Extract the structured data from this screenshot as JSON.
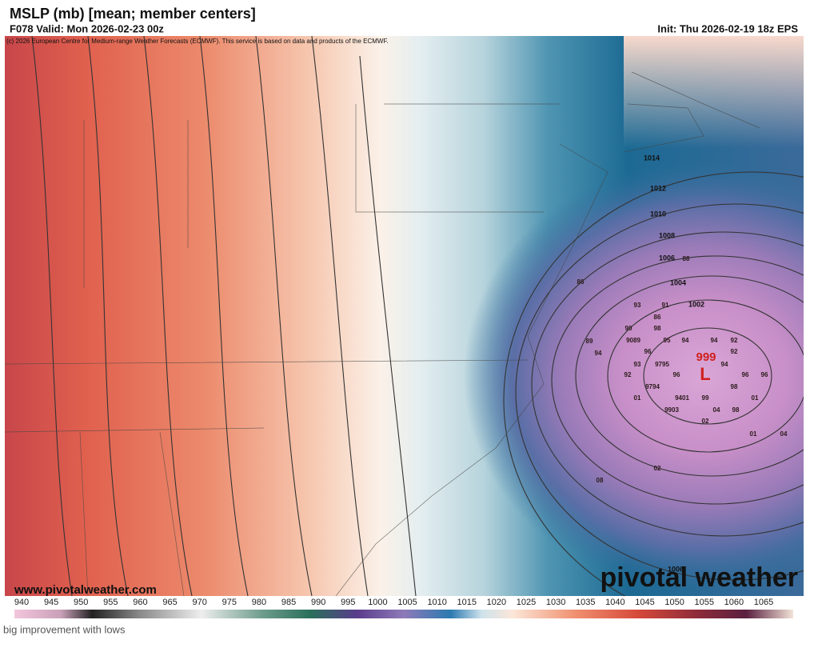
{
  "header": {
    "title": "MSLP (mb) [mean; member centers]",
    "valid": "F078 Valid: Mon 2026-02-23 00z",
    "init": "Init: Thu 2026-02-19 18z EPS",
    "credit": "(c) 2026 European Centre for Medium-range Weather Forecasts (ECMWF). This service is based on data and products of the ECMWF."
  },
  "isobar_labels": [
    "1014",
    "1012",
    "1010",
    "1008",
    "1006",
    "1004",
    "1002",
    "1006"
  ],
  "low": {
    "pressure": "999",
    "symbol": "L"
  },
  "member_centers": [
    "88",
    "86",
    "93",
    "91",
    "86",
    "90",
    "98",
    "89",
    "9089",
    "95",
    "94",
    "94",
    "92",
    "94",
    "96",
    "92",
    "93",
    "9795",
    "94",
    "92",
    "96",
    "96",
    "96",
    "9794",
    "98",
    "01",
    "9401",
    "99",
    "01",
    "9903",
    "04",
    "98",
    "02",
    "01",
    "04",
    "02",
    "08"
  ],
  "watermark": "www.pivotalweather.com",
  "logo": "pivotal weather",
  "colorbar": [
    940,
    945,
    950,
    955,
    960,
    965,
    970,
    975,
    980,
    985,
    990,
    995,
    1000,
    1005,
    1010,
    1015,
    1020,
    1025,
    1030,
    1035,
    1040,
    1045,
    1050,
    1055,
    1060,
    1065
  ],
  "caption": "big improvement with lows"
}
